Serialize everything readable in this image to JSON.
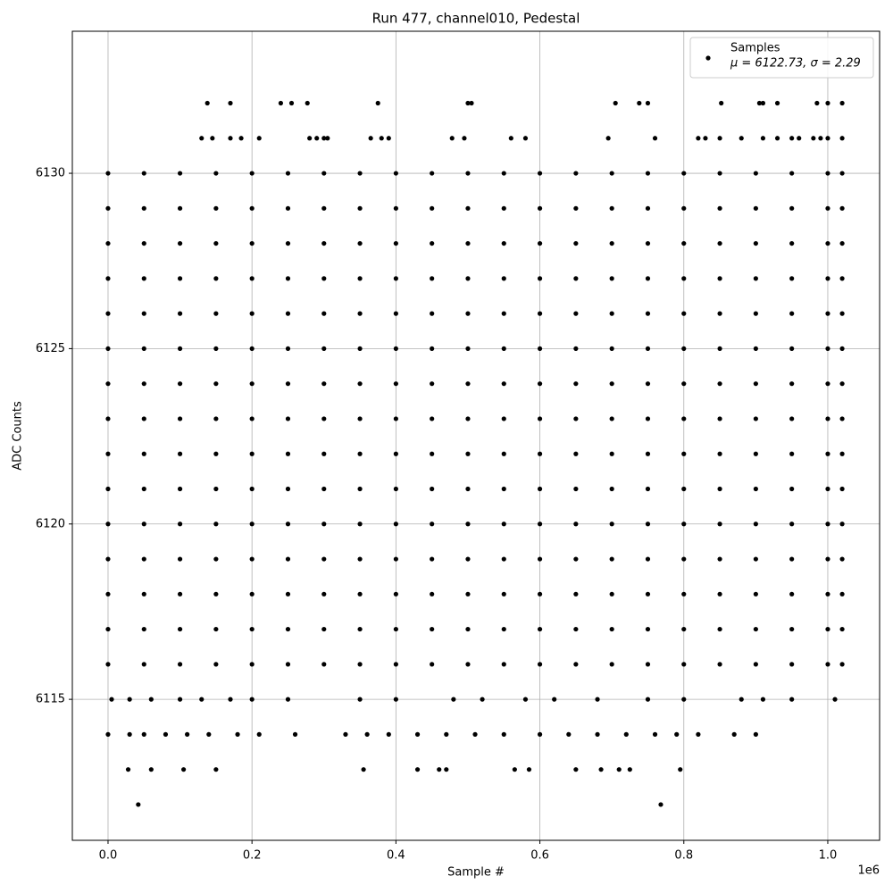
{
  "chart_data": {
    "type": "scatter",
    "title": "Run 477, channel010, Pedestal",
    "xlabel": "Sample #",
    "ylabel": "ADC Counts",
    "x_multiplier": "1e6",
    "xlim": [
      -0.0496,
      1.072
    ],
    "ylim": [
      6110.98,
      6134.05
    ],
    "xticks": [
      {
        "value": 0,
        "label": "0.0"
      },
      0.2,
      0.4,
      0.6,
      0.8,
      {
        "value": 1,
        "label": "1.0"
      }
    ],
    "yticks": [
      6115,
      6120,
      6125,
      6130
    ],
    "grid": true,
    "legend": "upper right",
    "legend_note": "μ = 6122.73, σ = 2.29",
    "series": [
      {
        "name": "Samples",
        "color": "#000000",
        "x": [
          0,
          0.05,
          0.1,
          0.15,
          0.2,
          0.25,
          0.3,
          0.35,
          0.4,
          0.45,
          0.5,
          0.55,
          0.6,
          0.65,
          0.7,
          0.75,
          0.8,
          0.85,
          0.9,
          0.95,
          1.0,
          1.02,
          0,
          0.05,
          0.1,
          0.15,
          0.2,
          0.25,
          0.3,
          0.35,
          0.4,
          0.45,
          0.5,
          0.55,
          0.6,
          0.65,
          0.7,
          0.75,
          0.8,
          0.85,
          0.9,
          0.95,
          1.0,
          1.02,
          0,
          0.05,
          0.1,
          0.15,
          0.2,
          0.25,
          0.3,
          0.35,
          0.4,
          0.45,
          0.5,
          0.55,
          0.6,
          0.65,
          0.7,
          0.75,
          0.8,
          0.85,
          0.9,
          0.95,
          1.0,
          1.02,
          0,
          0.05,
          0.1,
          0.15,
          0.2,
          0.25,
          0.3,
          0.35,
          0.4,
          0.45,
          0.5,
          0.55,
          0.6,
          0.65,
          0.7,
          0.75,
          0.8,
          0.85,
          0.9,
          0.95,
          1.0,
          1.02,
          0,
          0.05,
          0.1,
          0.15,
          0.2,
          0.25,
          0.3,
          0.35,
          0.4,
          0.45,
          0.5,
          0.55,
          0.6,
          0.65,
          0.7,
          0.75,
          0.8,
          0.85,
          0.9,
          0.95,
          1.0,
          1.02,
          0,
          0.05,
          0.1,
          0.15,
          0.2,
          0.25,
          0.3,
          0.35,
          0.4,
          0.45,
          0.5,
          0.55,
          0.6,
          0.65,
          0.7,
          0.75,
          0.8,
          0.85,
          0.9,
          0.95,
          1.0,
          1.02,
          0,
          0.05,
          0.1,
          0.15,
          0.2,
          0.25,
          0.3,
          0.35,
          0.4,
          0.45,
          0.5,
          0.55,
          0.6,
          0.65,
          0.7,
          0.75,
          0.8,
          0.85,
          0.9,
          0.95,
          1.0,
          1.02,
          0,
          0.05,
          0.1,
          0.15,
          0.2,
          0.25,
          0.3,
          0.35,
          0.4,
          0.45,
          0.5,
          0.55,
          0.6,
          0.65,
          0.7,
          0.75,
          0.8,
          0.85,
          0.9,
          0.95,
          1.0,
          1.02,
          0,
          0.05,
          0.1,
          0.15,
          0.2,
          0.25,
          0.3,
          0.35,
          0.4,
          0.45,
          0.5,
          0.55,
          0.6,
          0.65,
          0.7,
          0.75,
          0.8,
          0.85,
          0.9,
          0.95,
          1.0,
          1.02,
          0,
          0.05,
          0.1,
          0.15,
          0.2,
          0.25,
          0.3,
          0.35,
          0.4,
          0.45,
          0.5,
          0.55,
          0.6,
          0.65,
          0.7,
          0.75,
          0.8,
          0.85,
          0.9,
          0.95,
          1.0,
          1.02,
          0,
          0.05,
          0.1,
          0.15,
          0.2,
          0.25,
          0.3,
          0.35,
          0.4,
          0.45,
          0.5,
          0.55,
          0.6,
          0.65,
          0.7,
          0.75,
          0.8,
          0.85,
          0.9,
          0.95,
          1.0,
          1.02,
          0,
          0.05,
          0.1,
          0.15,
          0.2,
          0.25,
          0.3,
          0.35,
          0.4,
          0.45,
          0.5,
          0.55,
          0.6,
          0.65,
          0.7,
          0.75,
          0.8,
          0.85,
          0.9,
          0.95,
          1.0,
          1.02,
          0,
          0.05,
          0.1,
          0.15,
          0.2,
          0.25,
          0.3,
          0.35,
          0.4,
          0.45,
          0.5,
          0.55,
          0.6,
          0.65,
          0.7,
          0.75,
          0.8,
          0.85,
          0.9,
          0.95,
          1.0,
          1.02,
          0,
          0.05,
          0.1,
          0.15,
          0.2,
          0.25,
          0.3,
          0.35,
          0.4,
          0.45,
          0.5,
          0.55,
          0.6,
          0.65,
          0.7,
          0.75,
          0.8,
          0.85,
          0.9,
          0.95,
          1.0,
          1.02,
          0,
          0.05,
          0.1,
          0.15,
          0.2,
          0.25,
          0.3,
          0.35,
          0.4,
          0.45,
          0.5,
          0.55,
          0.6,
          0.65,
          0.7,
          0.75,
          0.8,
          0.85,
          0.9,
          0.95,
          1.0,
          1.02,
          0.005,
          0.03,
          0.06,
          0.1,
          0.13,
          0.17,
          0.2,
          0.25,
          0.35,
          0.4,
          0.48,
          0.52,
          0.58,
          0.62,
          0.68,
          0.75,
          0.8,
          0.88,
          0.91,
          0.95,
          1.01,
          0,
          0.03,
          0.05,
          0.08,
          0.11,
          0.14,
          0.18,
          0.21,
          0.26,
          0.33,
          0.36,
          0.39,
          0.43,
          0.47,
          0.51,
          0.55,
          0.6,
          0.64,
          0.68,
          0.72,
          0.76,
          0.79,
          0.82,
          0.87,
          0.9,
          0.028,
          0.06,
          0.105,
          0.15,
          0.355,
          0.43,
          0.46,
          0.47,
          0.565,
          0.585,
          0.65,
          0.685,
          0.71,
          0.725,
          0.795,
          0.042,
          0.768,
          0.13,
          0.145,
          0.17,
          0.185,
          0.21,
          0.28,
          0.29,
          0.3,
          0.305,
          0.365,
          0.38,
          0.39,
          0.478,
          0.495,
          0.56,
          0.58,
          0.695,
          0.76,
          0.82,
          0.83,
          0.85,
          0.88,
          0.91,
          0.93,
          0.95,
          0.96,
          0.98,
          0.99,
          1.0,
          1.02,
          0.138,
          0.17,
          0.24,
          0.255,
          0.277,
          0.375,
          0.5,
          0.505,
          0.705,
          0.738,
          0.75,
          0.852,
          0.905,
          0.91,
          0.93,
          0.985,
          1.0,
          1.02
        ],
        "values": [
          6130,
          6130,
          6130,
          6130,
          6130,
          6130,
          6130,
          6130,
          6130,
          6130,
          6130,
          6130,
          6130,
          6130,
          6130,
          6130,
          6130,
          6130,
          6130,
          6130,
          6130,
          6130,
          6129,
          6129,
          6129,
          6129,
          6129,
          6129,
          6129,
          6129,
          6129,
          6129,
          6129,
          6129,
          6129,
          6129,
          6129,
          6129,
          6129,
          6129,
          6129,
          6129,
          6129,
          6129,
          6128,
          6128,
          6128,
          6128,
          6128,
          6128,
          6128,
          6128,
          6128,
          6128,
          6128,
          6128,
          6128,
          6128,
          6128,
          6128,
          6128,
          6128,
          6128,
          6128,
          6128,
          6128,
          6127,
          6127,
          6127,
          6127,
          6127,
          6127,
          6127,
          6127,
          6127,
          6127,
          6127,
          6127,
          6127,
          6127,
          6127,
          6127,
          6127,
          6127,
          6127,
          6127,
          6127,
          6127,
          6126,
          6126,
          6126,
          6126,
          6126,
          6126,
          6126,
          6126,
          6126,
          6126,
          6126,
          6126,
          6126,
          6126,
          6126,
          6126,
          6126,
          6126,
          6126,
          6126,
          6126,
          6126,
          6125,
          6125,
          6125,
          6125,
          6125,
          6125,
          6125,
          6125,
          6125,
          6125,
          6125,
          6125,
          6125,
          6125,
          6125,
          6125,
          6125,
          6125,
          6125,
          6125,
          6125,
          6125,
          6124,
          6124,
          6124,
          6124,
          6124,
          6124,
          6124,
          6124,
          6124,
          6124,
          6124,
          6124,
          6124,
          6124,
          6124,
          6124,
          6124,
          6124,
          6124,
          6124,
          6124,
          6124,
          6123,
          6123,
          6123,
          6123,
          6123,
          6123,
          6123,
          6123,
          6123,
          6123,
          6123,
          6123,
          6123,
          6123,
          6123,
          6123,
          6123,
          6123,
          6123,
          6123,
          6123,
          6123,
          6122,
          6122,
          6122,
          6122,
          6122,
          6122,
          6122,
          6122,
          6122,
          6122,
          6122,
          6122,
          6122,
          6122,
          6122,
          6122,
          6122,
          6122,
          6122,
          6122,
          6122,
          6122,
          6121,
          6121,
          6121,
          6121,
          6121,
          6121,
          6121,
          6121,
          6121,
          6121,
          6121,
          6121,
          6121,
          6121,
          6121,
          6121,
          6121,
          6121,
          6121,
          6121,
          6121,
          6121,
          6120,
          6120,
          6120,
          6120,
          6120,
          6120,
          6120,
          6120,
          6120,
          6120,
          6120,
          6120,
          6120,
          6120,
          6120,
          6120,
          6120,
          6120,
          6120,
          6120,
          6120,
          6120,
          6119,
          6119,
          6119,
          6119,
          6119,
          6119,
          6119,
          6119,
          6119,
          6119,
          6119,
          6119,
          6119,
          6119,
          6119,
          6119,
          6119,
          6119,
          6119,
          6119,
          6119,
          6119,
          6118,
          6118,
          6118,
          6118,
          6118,
          6118,
          6118,
          6118,
          6118,
          6118,
          6118,
          6118,
          6118,
          6118,
          6118,
          6118,
          6118,
          6118,
          6118,
          6118,
          6118,
          6118,
          6117,
          6117,
          6117,
          6117,
          6117,
          6117,
          6117,
          6117,
          6117,
          6117,
          6117,
          6117,
          6117,
          6117,
          6117,
          6117,
          6117,
          6117,
          6117,
          6117,
          6117,
          6117,
          6116,
          6116,
          6116,
          6116,
          6116,
          6116,
          6116,
          6116,
          6116,
          6116,
          6116,
          6116,
          6116,
          6116,
          6116,
          6116,
          6116,
          6116,
          6116,
          6116,
          6116,
          6116,
          6115,
          6115,
          6115,
          6115,
          6115,
          6115,
          6115,
          6115,
          6115,
          6115,
          6115,
          6115,
          6115,
          6115,
          6115,
          6115,
          6115,
          6115,
          6115,
          6115,
          6115,
          6114,
          6114,
          6114,
          6114,
          6114,
          6114,
          6114,
          6114,
          6114,
          6114,
          6114,
          6114,
          6114,
          6114,
          6114,
          6114,
          6114,
          6114,
          6114,
          6114,
          6114,
          6114,
          6114,
          6114,
          6114,
          6113,
          6113,
          6113,
          6113,
          6113,
          6113,
          6113,
          6113,
          6113,
          6113,
          6113,
          6113,
          6113,
          6113,
          6113,
          6112,
          6112,
          6131,
          6131,
          6131,
          6131,
          6131,
          6131,
          6131,
          6131,
          6131,
          6131,
          6131,
          6131,
          6131,
          6131,
          6131,
          6131,
          6131,
          6131,
          6131,
          6131,
          6131,
          6131,
          6131,
          6131,
          6131,
          6131,
          6131,
          6131,
          6131,
          6131,
          6132,
          6132,
          6132,
          6132,
          6132,
          6132,
          6132,
          6132,
          6132,
          6132,
          6132,
          6132,
          6132,
          6132,
          6132,
          6132,
          6132,
          6132
        ]
      }
    ]
  }
}
